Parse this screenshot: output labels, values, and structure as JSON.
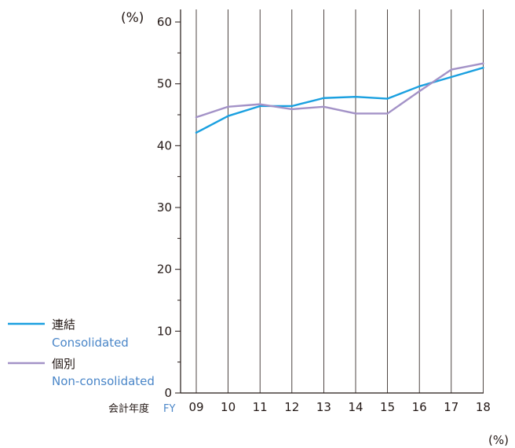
{
  "chart_data": {
    "type": "line",
    "unit_label": "(%)",
    "x_axis_prefix_ja": "会計年度",
    "x_axis_prefix_en": "FY",
    "categories": [
      "09",
      "10",
      "11",
      "12",
      "13",
      "14",
      "15",
      "16",
      "17",
      "18"
    ],
    "ylim": [
      0,
      60
    ],
    "yticks": [
      0,
      10,
      20,
      30,
      40,
      50,
      60
    ],
    "grid": "vertical",
    "legend_position": "bottom-left",
    "series": [
      {
        "name": "連結",
        "name_en": "Consolidated",
        "color": "#1aa0e0",
        "values": [
          42.1,
          44.8,
          46.4,
          46.4,
          47.7,
          47.9,
          47.6,
          49.6,
          51.1,
          52.6
        ]
      },
      {
        "name": "個別",
        "name_en": "Non-consolidated",
        "color": "#a392c7",
        "values": [
          44.6,
          46.3,
          46.7,
          45.9,
          46.3,
          45.2,
          45.2,
          48.8,
          52.3,
          53.3
        ]
      }
    ],
    "footer_unit": "(%)"
  }
}
